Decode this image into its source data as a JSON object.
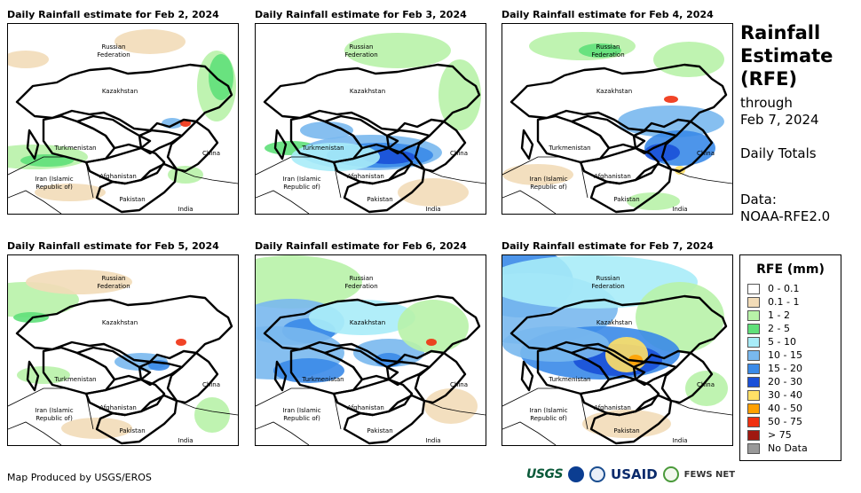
{
  "panels": [
    {
      "title": "Daily Rainfall estimate for Feb 2, 2024"
    },
    {
      "title": "Daily Rainfall estimate for Feb 3, 2024"
    },
    {
      "title": "Daily Rainfall estimate for Feb 4, 2024"
    },
    {
      "title": "Daily Rainfall estimate for Feb 5, 2024"
    },
    {
      "title": "Daily Rainfall estimate for Feb 6, 2024"
    },
    {
      "title": "Daily Rainfall estimate for Feb 7, 2024"
    }
  ],
  "place_labels": {
    "russia_1": "Russian",
    "russia_2": "Federation",
    "kazakhstan": "Kazakhstan",
    "turkmenistan": "Turkmenistan",
    "china": "China",
    "iran_1": "Iran  (Islamic",
    "iran_2": "Republic of)",
    "afghanistan": "Afghanistan",
    "pakistan": "Pakistan",
    "india": "India"
  },
  "sidebar": {
    "title_line1": "Rainfall",
    "title_line2": "Estimate",
    "title_line3": "(RFE)",
    "through": "through",
    "date": "Feb 7, 2024",
    "totals": "Daily Totals",
    "data_label": "Data:",
    "data_source": "NOAA-RFE2.0"
  },
  "legend": {
    "title": "RFE (mm)",
    "items": [
      {
        "label": "0 - 0.1",
        "color": "#ffffff"
      },
      {
        "label": "0.1 - 1",
        "color": "#f2dcb8"
      },
      {
        "label": "1 - 2",
        "color": "#b8f2a8"
      },
      {
        "label": "2 - 5",
        "color": "#5fe07a"
      },
      {
        "label": "5 - 10",
        "color": "#a8ecf8"
      },
      {
        "label": "10 - 15",
        "color": "#79b8ee"
      },
      {
        "label": "15 - 20",
        "color": "#3a8ae8"
      },
      {
        "label": "20 - 30",
        "color": "#1a50d8"
      },
      {
        "label": "30 - 40",
        "color": "#ffe066"
      },
      {
        "label": "40 - 50",
        "color": "#ffa000"
      },
      {
        "label": "50 - 75",
        "color": "#f03010"
      },
      {
        "label": "> 75",
        "color": "#a01810"
      },
      {
        "label": "No Data",
        "color": "#999999"
      }
    ]
  },
  "footer": {
    "credit": "Map Produced by USGS/EROS"
  },
  "logos": {
    "usgs": "USGS",
    "usaid": "USAID",
    "fews": "FEWS NET"
  }
}
